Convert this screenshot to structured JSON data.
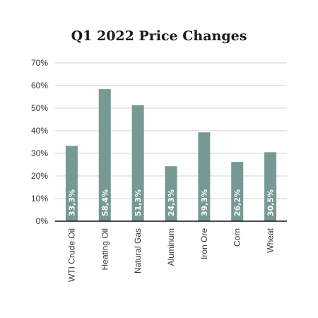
{
  "chart_data": {
    "type": "bar",
    "title": "Q1 2022 Price Changes",
    "xlabel": "",
    "ylabel": "",
    "categories": [
      "WTI Crude Oil",
      "Heating Oil",
      "Natural Gas",
      "Aluminum",
      "Iron Ore",
      "Corn",
      "Wheat"
    ],
    "values": [
      33.3,
      58.4,
      51.3,
      24.3,
      39.3,
      26.2,
      30.5
    ],
    "data_labels": [
      "33,3%",
      "58,4%",
      "51,3%",
      "24,3%",
      "39,3%",
      "26,2%",
      "30,5%"
    ],
    "y_ticks": [
      0,
      10,
      20,
      30,
      40,
      50,
      60,
      70
    ],
    "y_tick_labels": [
      "0%",
      "10%",
      "20%",
      "30%",
      "40%",
      "50%",
      "60%",
      "70%"
    ],
    "ylim": [
      0,
      70
    ],
    "grid": true,
    "legend": "none",
    "bar_color": "#779993",
    "axis_color": "#111111",
    "grid_color": "#d3d3d3"
  }
}
